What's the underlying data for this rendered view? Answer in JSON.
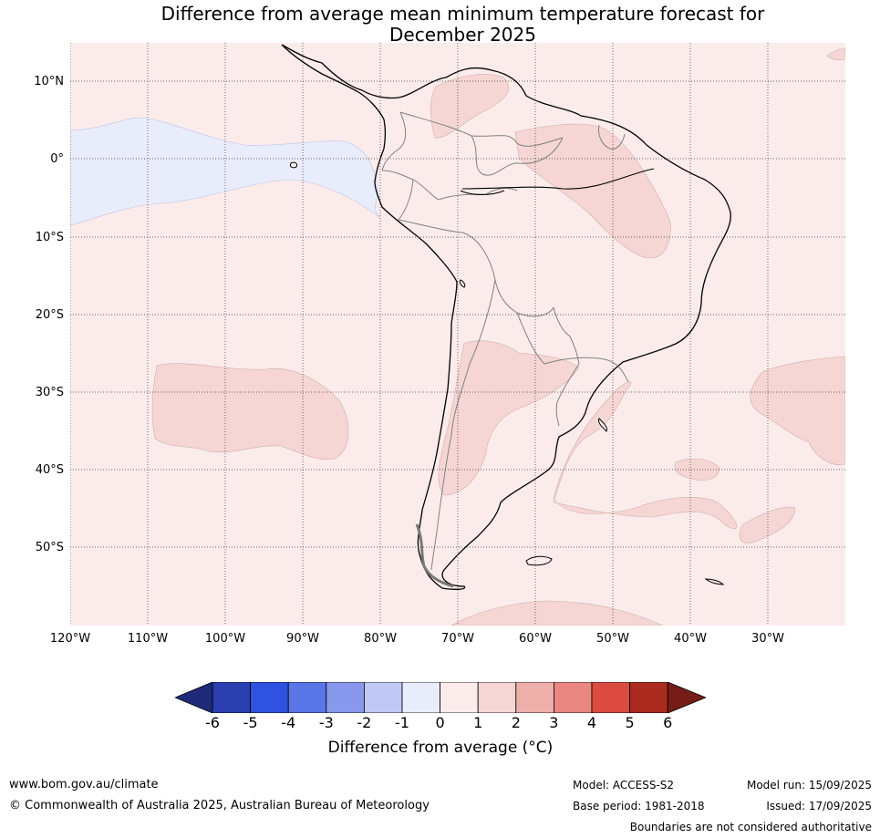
{
  "title_line1": "Difference from average mean minimum temperature forecast for",
  "title_line2": "December 2025",
  "lat_labels": [
    "10°N",
    "0°",
    "10°S",
    "20°S",
    "30°S",
    "40°S",
    "50°S"
  ],
  "lon_labels": [
    "120°W",
    "110°W",
    "100°W",
    "90°W",
    "80°W",
    "70°W",
    "60°W",
    "50°W",
    "40°W",
    "30°W"
  ],
  "colorbar": {
    "tick_labels": [
      "-6",
      "-5",
      "-4",
      "-3",
      "-2",
      "-1",
      "0",
      "1",
      "2",
      "3",
      "4",
      "5",
      "6"
    ],
    "title": "Difference from average (°C)",
    "colors": [
      "#1f2a78",
      "#2a3eb0",
      "#2f52e0",
      "#5a76e6",
      "#8898ec",
      "#c0c8f3",
      "#e9ecfb",
      "#fbeceb",
      "#f5d6d4",
      "#eeaea9",
      "#e98680",
      "#dc4b3f",
      "#ab2a1f",
      "#751d16"
    ]
  },
  "map": {
    "background_color": "#fbeceb",
    "cool_anomaly_color": "#e9ecfb",
    "warm_anomaly_color": "#f5d6d4",
    "coast_color": "#000000",
    "border_color": "#808080",
    "region": "South America"
  },
  "footer": {
    "website": "www.bom.gov.au/climate",
    "copyright": "© Commonwealth of Australia 2025, Australian Bureau of Meteorology",
    "model": "Model: ACCESS-S2",
    "base_period": "Base period: 1981-2018",
    "model_run": "Model run: 15/09/2025",
    "issued": "Issued: 17/09/2025",
    "disclaimer": "Boundaries are not considered authoritative"
  }
}
